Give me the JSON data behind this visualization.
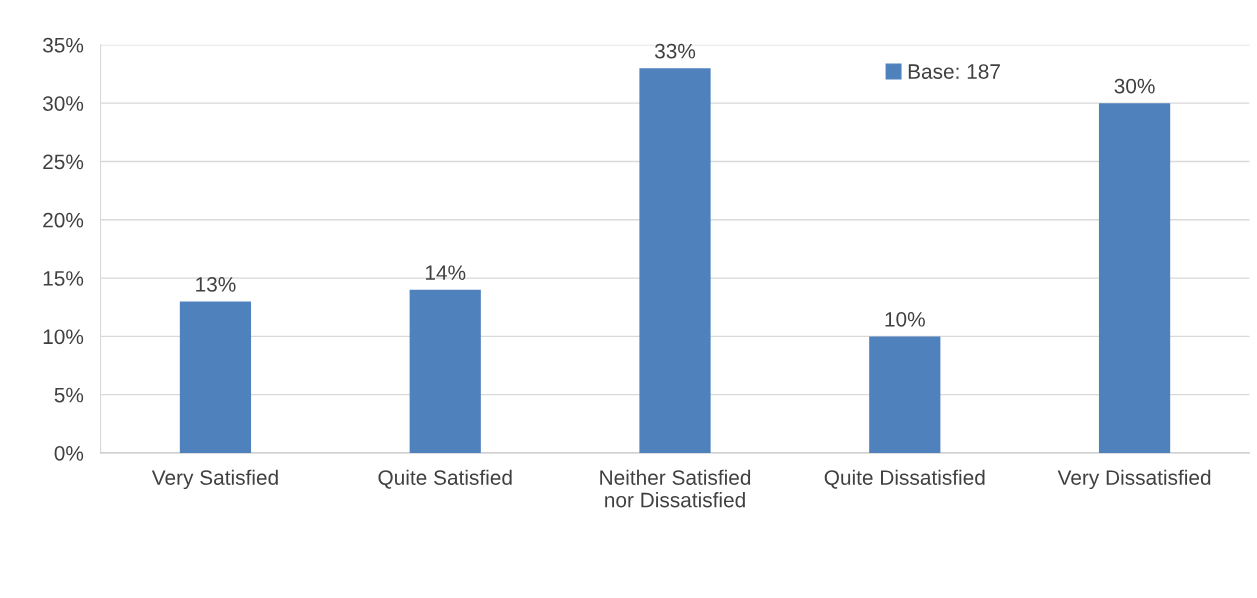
{
  "chart_data": {
    "type": "bar",
    "categories": [
      "Very Satisfied",
      "Quite Satisfied",
      "Neither Satisfied\nnor Dissatisfied",
      "Quite Dissatisfied",
      "Very Dissatisfied"
    ],
    "series": [
      {
        "name": "Base: 187",
        "color": "#4f81bd",
        "values": [
          13,
          14,
          33,
          10,
          30
        ],
        "value_labels": [
          "13%",
          "14%",
          "33%",
          "10%",
          "30%"
        ]
      }
    ],
    "ylim": [
      0,
      35
    ],
    "yticks": [
      {
        "value": 0,
        "label": "0%"
      },
      {
        "value": 5,
        "label": "5%"
      },
      {
        "value": 10,
        "label": "10%"
      },
      {
        "value": 15,
        "label": "15%"
      },
      {
        "value": 20,
        "label": "20%"
      },
      {
        "value": 25,
        "label": "25%"
      },
      {
        "value": 30,
        "label": "30%"
      },
      {
        "value": 35,
        "label": "35%"
      }
    ],
    "grid": "y",
    "legend": "top right"
  }
}
